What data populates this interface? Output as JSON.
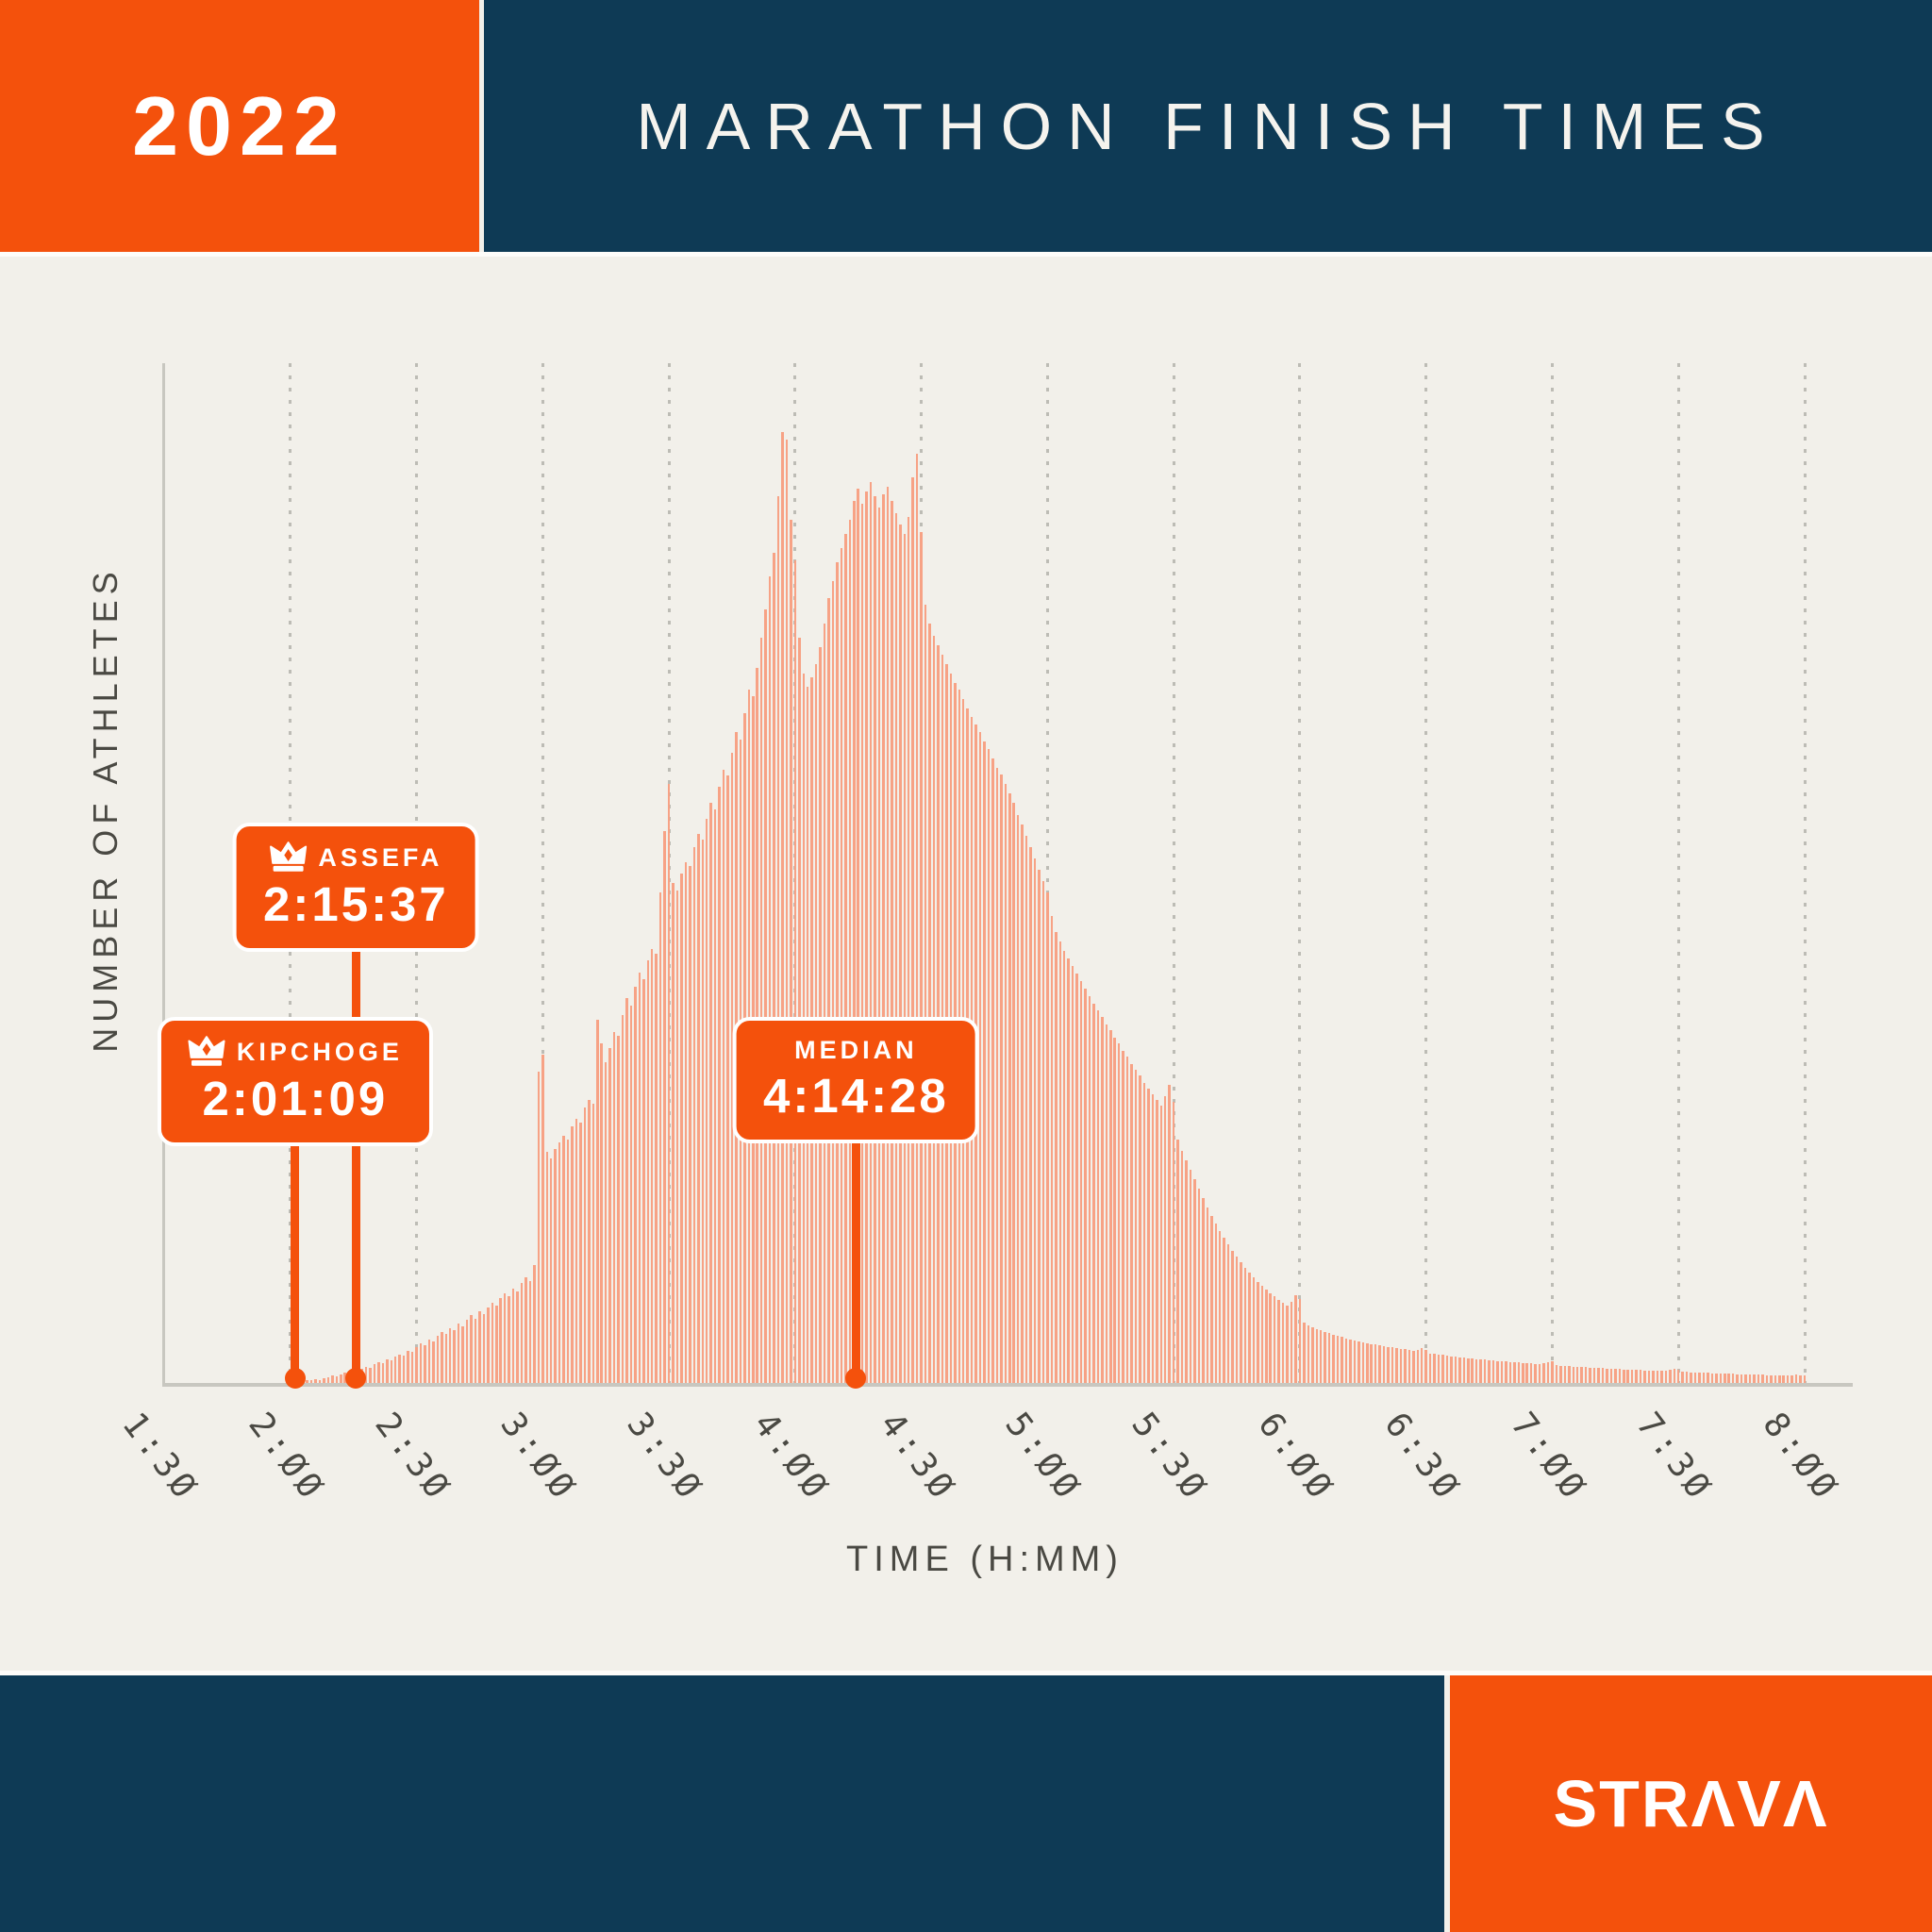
{
  "page": {
    "background": "#F2F0EA"
  },
  "header": {
    "year": "2022",
    "title": "MARATHON FINISH TIMES",
    "year_bg": "#F4510C",
    "title_bg": "#0E3A55",
    "text_color": "#FFFFFF"
  },
  "footer": {
    "bg": "#0E3A55",
    "logo": "STRAVA",
    "logo_bg": "#F4510C",
    "logo_color": "#FFFFFF"
  },
  "chart_data": {
    "type": "bar",
    "title": "MARATHON FINISH TIMES",
    "xlabel": "TIME (H:MM)",
    "ylabel": "NUMBER OF ATHLETES",
    "x_tick_labels": [
      "1:30",
      "2:00",
      "2:30",
      "3:00",
      "3:30",
      "4:00",
      "4:30",
      "5:00",
      "5:30",
      "6:00",
      "6:30",
      "7:00",
      "7:30",
      "8:00"
    ],
    "x_start_minutes": 90,
    "x_end_minutes": 480,
    "bin_minutes": 1,
    "unit": "relative number of athletes per 1-minute bin",
    "ylim": [
      0,
      1080
    ],
    "grid": "vertical-dotted",
    "bar_color": "#F7A285",
    "grid_color": "#BDBCB5",
    "axis_color": "#C8C7C0",
    "tick_text_color": "#4A4943",
    "marker_color": "#F4510C",
    "values": [
      0,
      0,
      0,
      0,
      0,
      0,
      0,
      0,
      0,
      0,
      0,
      0,
      0,
      0,
      0,
      0,
      0,
      0,
      0,
      0,
      0,
      0,
      0,
      0,
      0,
      0,
      0,
      0,
      0,
      0,
      0,
      0,
      0,
      2,
      3,
      3,
      4,
      3,
      5,
      6,
      8,
      7,
      9,
      11,
      10,
      13,
      12,
      15,
      17,
      16,
      20,
      22,
      21,
      25,
      24,
      28,
      30,
      29,
      34,
      33,
      38,
      42,
      40,
      46,
      44,
      50,
      54,
      52,
      58,
      56,
      63,
      60,
      67,
      72,
      68,
      76,
      73,
      80,
      85,
      82,
      90,
      95,
      92,
      100,
      97,
      106,
      112,
      108,
      125,
      330,
      348,
      245,
      238,
      248,
      255,
      262,
      258,
      272,
      280,
      276,
      292,
      300,
      296,
      385,
      360,
      340,
      355,
      372,
      368,
      390,
      408,
      400,
      420,
      435,
      428,
      448,
      460,
      455,
      520,
      585,
      635,
      530,
      522,
      540,
      552,
      548,
      568,
      582,
      576,
      598,
      615,
      608,
      632,
      650,
      644,
      668,
      690,
      682,
      710,
      735,
      728,
      758,
      790,
      820,
      855,
      880,
      940,
      1008,
      1000,
      915,
      872,
      790,
      752,
      738,
      748,
      762,
      780,
      805,
      832,
      850,
      870,
      885,
      900,
      915,
      935,
      948,
      932,
      945,
      955,
      940,
      928,
      942,
      950,
      935,
      922,
      910,
      900,
      918,
      960,
      985,
      902,
      825,
      805,
      792,
      782,
      772,
      762,
      752,
      742,
      735,
      725,
      715,
      706,
      698,
      690,
      680,
      672,
      662,
      652,
      645,
      635,
      625,
      615,
      602,
      592,
      580,
      568,
      556,
      544,
      532,
      520,
      495,
      478,
      468,
      458,
      450,
      442,
      434,
      426,
      418,
      410,
      402,
      395,
      388,
      380,
      374,
      366,
      360,
      352,
      346,
      338,
      332,
      326,
      318,
      312,
      306,
      300,
      294,
      304,
      316,
      298,
      258,
      246,
      236,
      226,
      216,
      206,
      196,
      186,
      177,
      169,
      161,
      154,
      147,
      140,
      134,
      128,
      122,
      117,
      112,
      107,
      103,
      99,
      95,
      92,
      88,
      85,
      82,
      86,
      93,
      89,
      64,
      61,
      59,
      57,
      56,
      54,
      53,
      51,
      50,
      49,
      47,
      46,
      45,
      44,
      43,
      42,
      41,
      41,
      40,
      39,
      38,
      38,
      37,
      36,
      36,
      35,
      34,
      35,
      37,
      35,
      31,
      31,
      30,
      30,
      29,
      28,
      28,
      27,
      27,
      26,
      26,
      25,
      25,
      25,
      24,
      24,
      23,
      23,
      23,
      22,
      22,
      22,
      21,
      21,
      21,
      20,
      20,
      21,
      22,
      23,
      19,
      18,
      18,
      18,
      17,
      17,
      17,
      17,
      16,
      16,
      16,
      16,
      15,
      15,
      15,
      15,
      14,
      14,
      14,
      14,
      14,
      13,
      13,
      13,
      13,
      13,
      13,
      14,
      15,
      14,
      12,
      12,
      11,
      11,
      11,
      11,
      11,
      10,
      10,
      10,
      10,
      10,
      10,
      9,
      9,
      9,
      9,
      9,
      9,
      9,
      8,
      8,
      8,
      8,
      8,
      8,
      8,
      9,
      8,
      8
    ],
    "markers": [
      {
        "id": "assefa",
        "label": "ASSEFA",
        "value": "2:15:37",
        "minutes": 135.62,
        "crown": true,
        "row": "high"
      },
      {
        "id": "kipchoge",
        "label": "KIPCHOGE",
        "value": "2:01:09",
        "minutes": 121.15,
        "crown": true,
        "row": "low"
      },
      {
        "id": "median",
        "label": "MEDIAN",
        "value": "4:14:28",
        "minutes": 254.47,
        "crown": false,
        "row": "low"
      }
    ],
    "legend": "none"
  }
}
